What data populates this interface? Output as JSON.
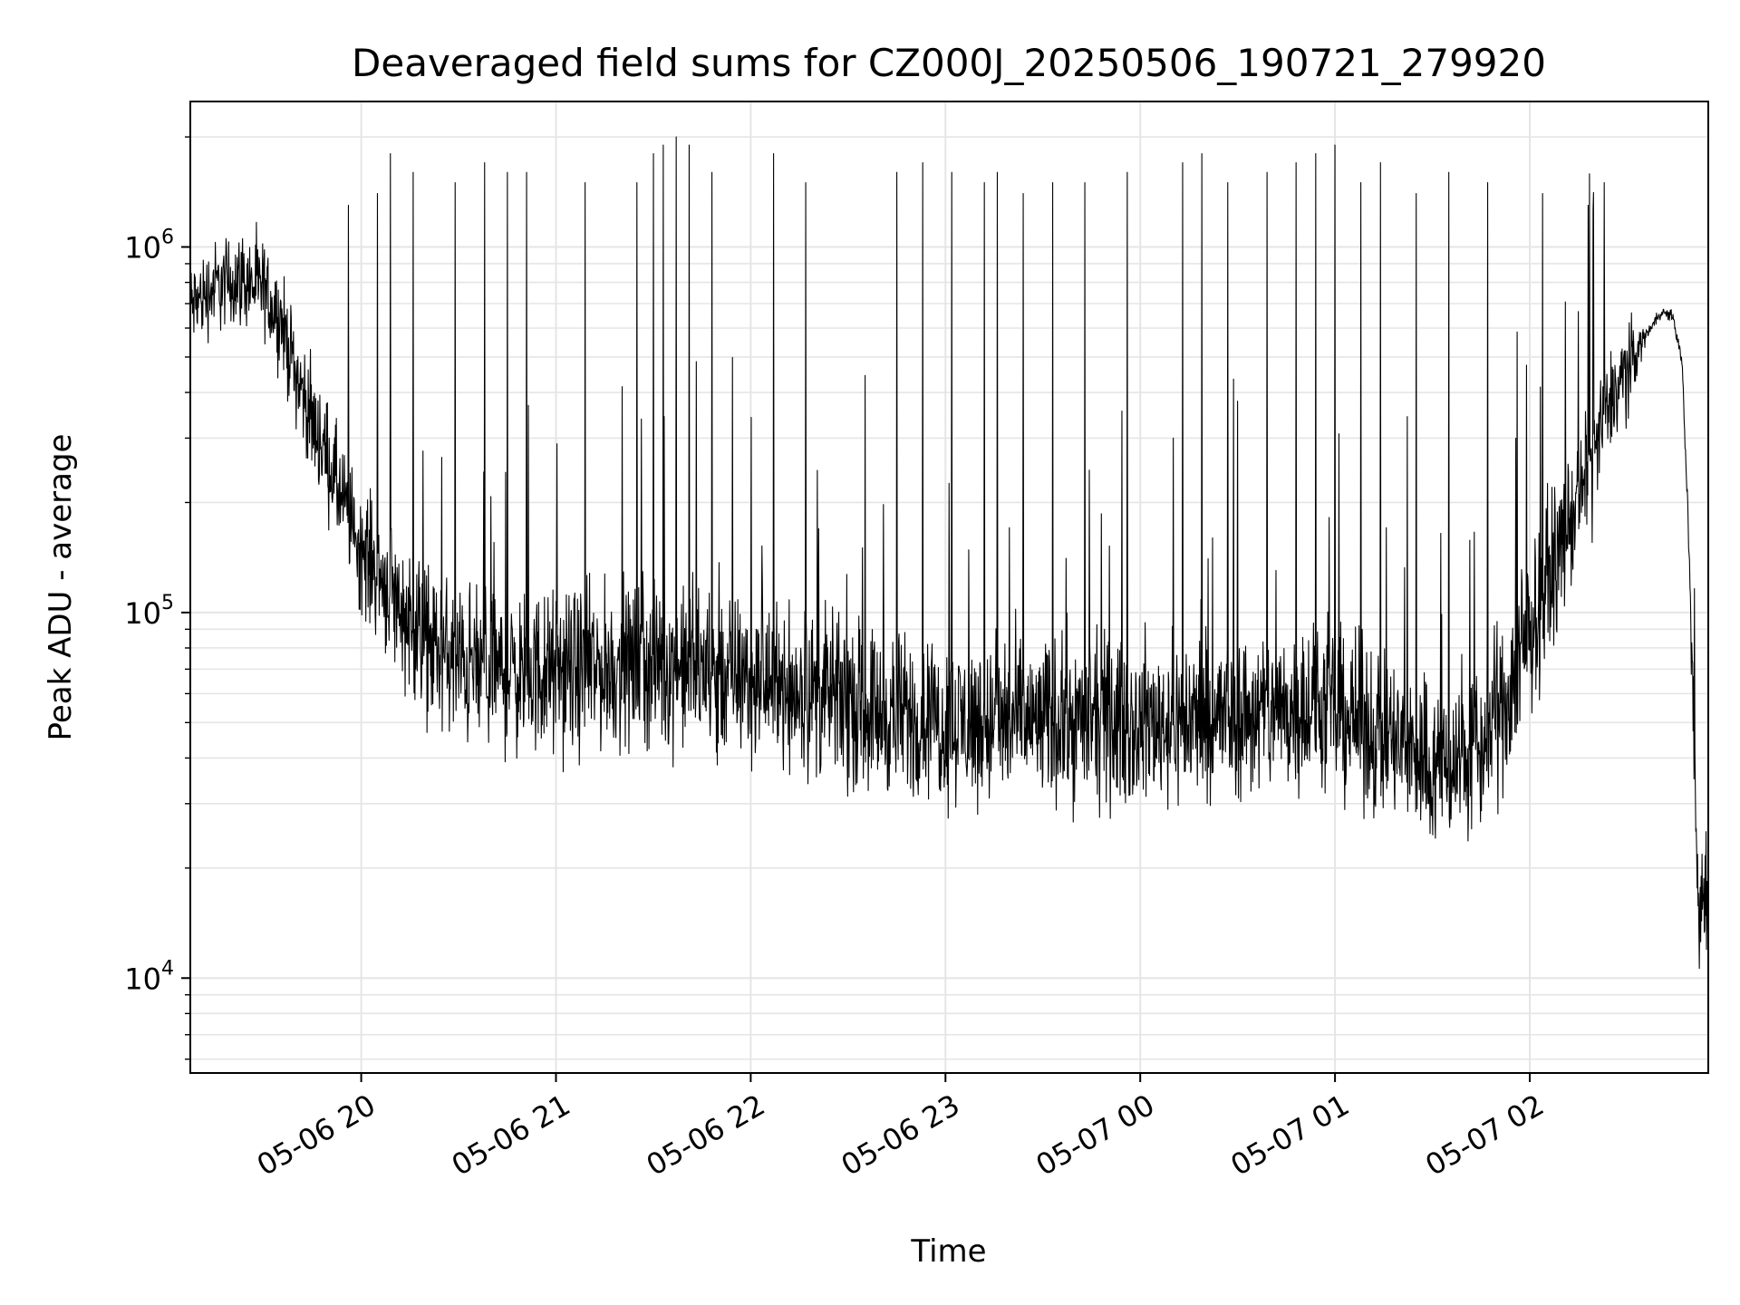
{
  "chart_data": {
    "type": "line",
    "title": "Deaveraged field sums for CZ000J_20250506_190721_279920",
    "xlabel": "Time",
    "ylabel": "Peak ADU - average",
    "yscale": "log",
    "ylim": [
      5500,
      2500000
    ],
    "xlim": [
      "2025-05-06 19:07:21",
      "2025-05-07 02:55:00"
    ],
    "grid": true,
    "line_color": "#000000",
    "grid_color": "#e5e5e5",
    "x_ticks": [
      {
        "t": "2025-05-06 20:00",
        "label": "05-06 20"
      },
      {
        "t": "2025-05-06 21:00",
        "label": "05-06 21"
      },
      {
        "t": "2025-05-06 22:00",
        "label": "05-06 22"
      },
      {
        "t": "2025-05-06 23:00",
        "label": "05-06 23"
      },
      {
        "t": "2025-05-07 00:00",
        "label": "05-07 00"
      },
      {
        "t": "2025-05-07 01:00",
        "label": "05-07 01"
      },
      {
        "t": "2025-05-07 02:00",
        "label": "05-07 02"
      }
    ],
    "y_ticks": [
      {
        "value": 10000,
        "base": "10",
        "exp": "4"
      },
      {
        "value": 100000,
        "base": "10",
        "exp": "5"
      },
      {
        "value": 1000000,
        "base": "10",
        "exp": "6"
      }
    ],
    "series": [
      {
        "baseline": [
          [
            "2025-05-06 19:07",
            680000
          ],
          [
            "2025-05-06 19:15",
            780000
          ],
          [
            "2025-05-06 19:23",
            820000
          ],
          [
            "2025-05-06 19:30",
            760000
          ],
          [
            "2025-05-06 19:35",
            640000
          ],
          [
            "2025-05-06 19:40",
            450000
          ],
          [
            "2025-05-06 19:45",
            330000
          ],
          [
            "2025-05-06 19:50",
            260000
          ],
          [
            "2025-05-06 19:55",
            190000
          ],
          [
            "2025-05-06 20:00",
            150000
          ],
          [
            "2025-05-06 20:05",
            130000
          ],
          [
            "2025-05-06 20:10",
            110000
          ],
          [
            "2025-05-06 20:15",
            95000
          ],
          [
            "2025-05-06 20:20",
            82000
          ],
          [
            "2025-05-06 20:30",
            72000
          ],
          [
            "2025-05-06 20:45",
            68000
          ],
          [
            "2025-05-06 21:00",
            68000
          ],
          [
            "2025-05-06 21:15",
            70000
          ],
          [
            "2025-05-06 21:30",
            72000
          ],
          [
            "2025-05-06 21:45",
            68000
          ],
          [
            "2025-05-06 22:00",
            66000
          ],
          [
            "2025-05-06 22:20",
            60000
          ],
          [
            "2025-05-06 22:45",
            52000
          ],
          [
            "2025-05-06 23:00",
            50000
          ],
          [
            "2025-05-06 23:30",
            50000
          ],
          [
            "2025-05-07 00:00",
            50000
          ],
          [
            "2025-05-07 00:30",
            52000
          ],
          [
            "2025-05-07 00:50",
            55000
          ],
          [
            "2025-05-07 01:00",
            54000
          ],
          [
            "2025-05-07 01:15",
            46000
          ],
          [
            "2025-05-07 01:30",
            38000
          ],
          [
            "2025-05-07 01:45",
            42000
          ],
          [
            "2025-05-07 01:55",
            65000
          ],
          [
            "2025-05-07 02:05",
            120000
          ],
          [
            "2025-05-07 02:15",
            200000
          ],
          [
            "2025-05-07 02:25",
            380000
          ],
          [
            "2025-05-07 02:35",
            560000
          ],
          [
            "2025-05-07 02:40",
            660000
          ],
          [
            "2025-05-07 02:44",
            650000
          ],
          [
            "2025-05-07 02:47",
            480000
          ],
          [
            "2025-05-07 02:49",
            150000
          ],
          [
            "2025-05-07 02:51",
            30000
          ],
          [
            "2025-05-07 02:52",
            15000
          ],
          [
            "2025-05-07 02:55",
            20000
          ]
        ],
        "noise": [
          [
            "2025-05-06 19:07",
            0.22
          ],
          [
            "2025-05-06 19:40",
            0.25
          ],
          [
            "2025-05-06 20:30",
            0.4
          ],
          [
            "2025-05-07 01:55",
            0.42
          ],
          [
            "2025-05-07 02:30",
            0.25
          ],
          [
            "2025-05-07 02:36",
            0.03
          ],
          [
            "2025-05-07 02:48",
            0.03
          ],
          [
            "2025-05-07 02:51",
            0.35
          ],
          [
            "2025-05-07 02:55",
            0.35
          ]
        ],
        "spikes": [
          [
            "2025-05-06 19:56",
            1300000
          ],
          [
            "2025-05-06 20:05",
            1400000
          ],
          [
            "2025-05-06 20:09",
            1800000
          ],
          [
            "2025-05-06 20:16",
            1600000
          ],
          [
            "2025-05-06 20:29",
            1500000
          ],
          [
            "2025-05-06 20:38",
            1700000
          ],
          [
            "2025-05-06 20:45",
            1600000
          ],
          [
            "2025-05-06 20:51",
            1600000
          ],
          [
            "2025-05-06 21:09",
            1500000
          ],
          [
            "2025-05-06 21:25",
            1500000
          ],
          [
            "2025-05-06 21:30",
            1800000
          ],
          [
            "2025-05-06 21:33",
            1900000
          ],
          [
            "2025-05-06 21:37",
            2000000
          ],
          [
            "2025-05-06 21:41",
            1900000
          ],
          [
            "2025-05-06 21:48",
            1600000
          ],
          [
            "2025-05-06 22:07",
            1800000
          ],
          [
            "2025-05-06 22:17",
            1500000
          ],
          [
            "2025-05-06 22:45",
            1600000
          ],
          [
            "2025-05-06 22:53",
            1700000
          ],
          [
            "2025-05-06 23:02",
            1600000
          ],
          [
            "2025-05-06 23:12",
            1500000
          ],
          [
            "2025-05-06 23:16",
            1600000
          ],
          [
            "2025-05-06 23:24",
            1400000
          ],
          [
            "2025-05-06 23:33",
            1500000
          ],
          [
            "2025-05-06 23:43",
            1500000
          ],
          [
            "2025-05-06 23:56",
            1600000
          ],
          [
            "2025-05-07 00:13",
            1700000
          ],
          [
            "2025-05-07 00:19",
            1800000
          ],
          [
            "2025-05-07 00:27",
            1500000
          ],
          [
            "2025-05-07 00:39",
            1600000
          ],
          [
            "2025-05-07 00:48",
            1700000
          ],
          [
            "2025-05-07 00:54",
            1800000
          ],
          [
            "2025-05-07 01:00",
            1900000
          ],
          [
            "2025-05-07 01:08",
            1500000
          ],
          [
            "2025-05-07 01:14",
            1700000
          ],
          [
            "2025-05-07 01:25",
            1400000
          ],
          [
            "2025-05-07 01:35",
            1600000
          ],
          [
            "2025-05-07 01:47",
            1500000
          ],
          [
            "2025-05-07 02:04",
            1400000
          ],
          [
            "2025-05-07 02:18",
            1300000
          ],
          [
            "2025-05-07 02:23",
            1500000
          ]
        ]
      }
    ]
  }
}
